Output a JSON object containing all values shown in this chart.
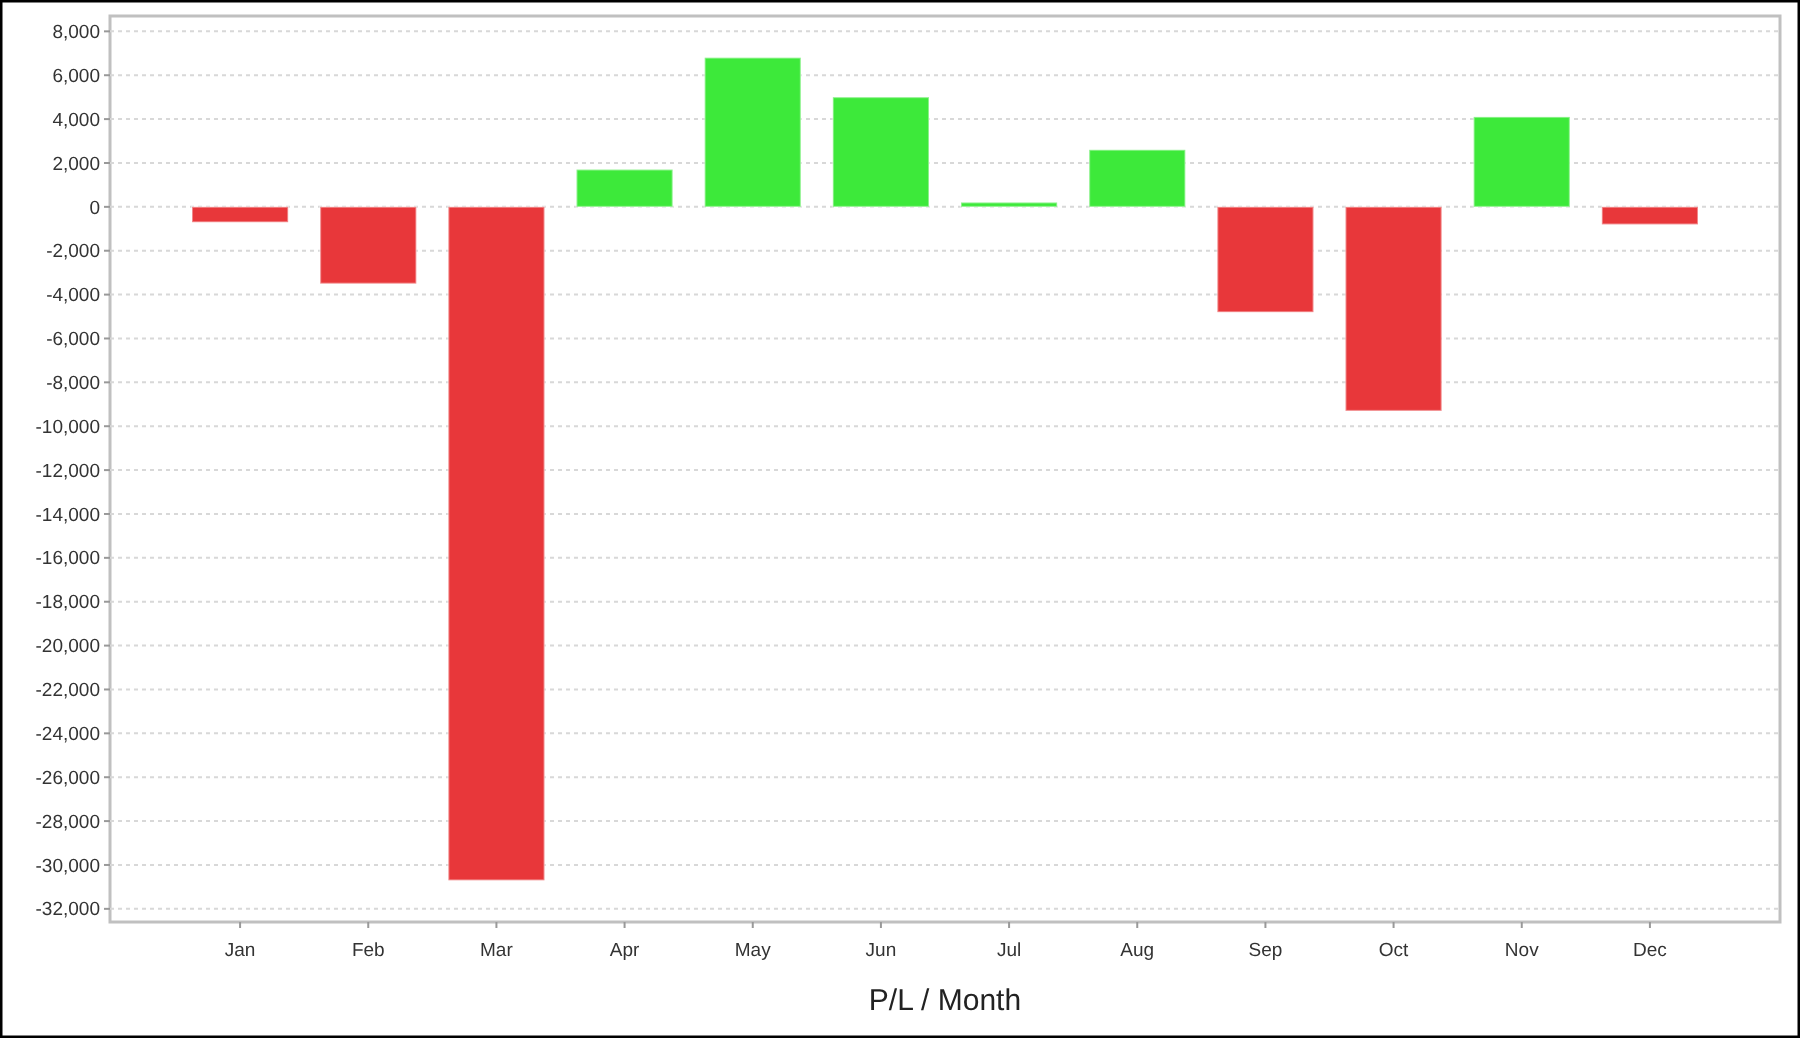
{
  "chart_data": {
    "type": "bar",
    "xlabel": "P/L / Month",
    "categories": [
      "Jan",
      "Feb",
      "Mar",
      "Apr",
      "May",
      "Jun",
      "Jul",
      "Aug",
      "Sep",
      "Oct",
      "Nov",
      "Dec"
    ],
    "values": [
      -700,
      -3500,
      -30700,
      1700,
      6800,
      5000,
      200,
      2600,
      -4800,
      -9300,
      4100,
      -800
    ],
    "colors": [
      "#e8373a",
      "#e8373a",
      "#e8373a",
      "#3de93a",
      "#3de93a",
      "#3de93a",
      "#3de93a",
      "#3de93a",
      "#e8373a",
      "#e8373a",
      "#3de93a",
      "#e8373a"
    ],
    "ylim": [
      -32600,
      8700
    ],
    "yticks": [
      {
        "value": 8000,
        "label": "8,000"
      },
      {
        "value": 6000,
        "label": "6,000"
      },
      {
        "value": 4000,
        "label": "4,000"
      },
      {
        "value": 2000,
        "label": "2,000"
      },
      0,
      {
        "value": -2000,
        "label": "-2,000"
      },
      {
        "value": -4000,
        "label": "-4,000"
      },
      {
        "value": -6000,
        "label": "-6,000"
      },
      {
        "value": -8000,
        "label": "-8,000"
      },
      {
        "value": -10000,
        "label": "-10,000"
      },
      {
        "value": -12000,
        "label": "-12,000"
      },
      {
        "value": -14000,
        "label": "-14,000"
      },
      {
        "value": -16000,
        "label": "-16,000"
      },
      {
        "value": -18000,
        "label": "-18,000"
      },
      {
        "value": -20000,
        "label": "-20,000"
      },
      {
        "value": -22000,
        "label": "-22,000"
      },
      {
        "value": -24000,
        "label": "-24,000"
      },
      {
        "value": -26000,
        "label": "-26,000"
      },
      {
        "value": -28000,
        "label": "-28,000"
      },
      {
        "value": -30000,
        "label": "-30,000"
      },
      {
        "value": -32000,
        "label": "-32,000"
      }
    ],
    "grid": "y"
  }
}
